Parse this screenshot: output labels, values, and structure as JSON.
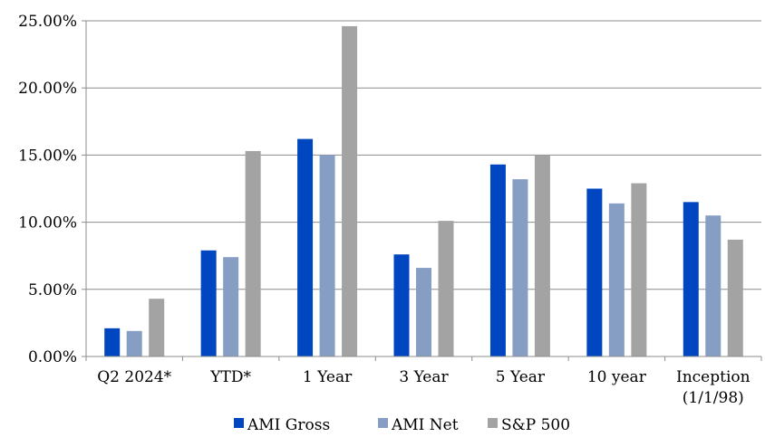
{
  "chart_data": {
    "type": "bar",
    "title": "",
    "xlabel": "",
    "ylabel": "",
    "ylim": [
      0,
      25
    ],
    "y_unit": "%",
    "yticks": [
      "0.00%",
      "5.00%",
      "10.00%",
      "15.00%",
      "20.00%",
      "25.00%"
    ],
    "grid": "horizontal",
    "legend_position": "bottom",
    "categories": [
      [
        "Q2 2024*"
      ],
      [
        "YTD*"
      ],
      [
        "1 Year"
      ],
      [
        "3 Year"
      ],
      [
        "5 Year"
      ],
      [
        "10 year"
      ],
      [
        "Inception",
        "(1/1/98)"
      ]
    ],
    "series": [
      {
        "name": "AMI Gross",
        "color": "#0046c0",
        "values": [
          2.1,
          7.9,
          16.2,
          7.6,
          14.3,
          12.5,
          11.5
        ]
      },
      {
        "name": "AMI Net",
        "color": "#879ec4",
        "values": [
          1.9,
          7.4,
          15.0,
          6.6,
          13.2,
          11.4,
          10.5
        ]
      },
      {
        "name": "S&P 500",
        "color": "#a3a3a3",
        "values": [
          4.3,
          15.3,
          24.6,
          10.1,
          15.0,
          12.9,
          8.7
        ]
      }
    ]
  }
}
